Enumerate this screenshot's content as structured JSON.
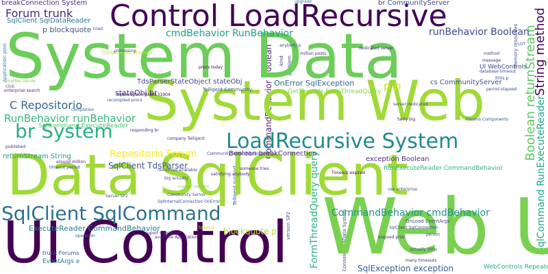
{
  "word_cloud": {
    "words": [
      {
        "text": "System Data",
        "color": "#6ccd5a"
      },
      {
        "text": "System Web",
        "color": "#a0da39"
      },
      {
        "text": "Data SqlClient",
        "color": "#a0da39"
      },
      {
        "text": "UI Control",
        "color": "#440154"
      },
      {
        "text": "Control LoadRecursive",
        "color": "#440154"
      },
      {
        "text": "Web UI",
        "color": "#7ad151"
      },
      {
        "text": "LoadRecursive System",
        "color": "#238a8d"
      },
      {
        "text": "SqlClient SqlCommand",
        "color": "#2c728e"
      },
      {
        "text": "br System",
        "color": "#2ab07f"
      },
      {
        "text": "Forum trunk",
        "color": "#482878"
      },
      {
        "text": "runBehavior Boolean",
        "color": "#3e4a89"
      },
      {
        "text": "cmdBehavior RunBehavior",
        "color": "#1f9e89"
      },
      {
        "text": "RunBehavior runBehavior",
        "color": "#35b779"
      },
      {
        "text": "Repositorio Forum",
        "color": "#fde725"
      },
      {
        "text": "C Repositorio",
        "color": "#31688e"
      },
      {
        "text": "CommandBehavior cmdBehavior",
        "color": "#21918c"
      },
      {
        "text": "ExecuteReader CommandBehavior",
        "color": "#26828e"
      },
      {
        "text": "SqlClient TdsParser",
        "color": "#3b528b"
      },
      {
        "text": "SqlException exception",
        "color": "#365c8d"
      },
      {
        "text": "String method",
        "color": "#440154"
      },
      {
        "text": "SqlCommand RunExecuteReader",
        "color": "#20a486"
      },
      {
        "text": "Boolean returnStream",
        "color": "#5ec962"
      },
      {
        "text": "breakConnection System",
        "color": "#46327e"
      },
      {
        "text": "br CommunityServer",
        "color": "#3f4788"
      },
      {
        "text": "blockquote p",
        "color": "#b5de2b"
      },
      {
        "text": "p p",
        "color": "#d8e219"
      },
      {
        "text": "SqlClient SqlDataReader",
        "color": "#2a788e"
      },
      {
        "text": "p blockquote",
        "color": "#3b528b"
      },
      {
        "text": "OnError SqlException",
        "color": "#31688e"
      },
      {
        "text": "stateObj br",
        "color": "#414487"
      },
      {
        "text": "TdsParserStateObject stateObj",
        "color": "#3e4989"
      },
      {
        "text": "SqlCommand ExecuteReader",
        "color": "#4ac16d"
      },
      {
        "text": "Boolean breakConnection",
        "color": "#482475"
      },
      {
        "text": "exception Boolean",
        "color": "#472d7b"
      },
      {
        "text": "RunExecuteReader CommandBehavior",
        "color": "#2fb47c"
      },
      {
        "text": "returnStream String",
        "color": "#1f988b"
      },
      {
        "text": "cs CommunityServer",
        "color": "#3b528b"
      },
      {
        "text": "GetThreads FormThreadQuery",
        "color": "#86d549"
      },
      {
        "text": "UI WebControls",
        "color": "#3e4a89"
      },
      {
        "text": "WebControls Repeater",
        "color": "#27ad81"
      },
      {
        "text": "CommandBehavior Boolean",
        "color": "#481b6d"
      },
      {
        "text": "FormThreadQuery query",
        "color": "#2db27d"
      },
      {
        "text": "EventArgs e",
        "color": "#2c728e"
      },
      {
        "text": "trunk Forums",
        "color": "#3e4a89"
      },
      {
        "text": "Components Threads",
        "color": "#c8e020"
      },
      {
        "text": "SqlException 0x80131904",
        "color": "#440154"
      },
      {
        "text": "Telligent Community",
        "color": "#3b528b"
      },
      {
        "text": "procs today",
        "color": "#440154"
      },
      {
        "text": "OnLoad EventArgs",
        "color": "#3e4989"
      },
      {
        "text": "dedicated server",
        "color": "#472c7a"
      },
      {
        "text": "memory resources",
        "color": "#3b528b"
      },
      {
        "text": "million posts",
        "color": "#482878"
      },
      {
        "text": "anybody p",
        "color": "#404688"
      },
      {
        "text": "upgrade",
        "color": "#2a788e"
      },
      {
        "text": "LOT",
        "color": "#3b528b"
      },
      {
        "text": "Timeout expired",
        "color": "#440154"
      },
      {
        "text": "actually 300s",
        "color": "#3e4989"
      },
      {
        "text": "many timeouts",
        "color": "#482878"
      },
      {
        "text": "elapsed prior",
        "color": "#472d7b"
      },
      {
        "text": "person",
        "color": "#3e4989"
      },
      {
        "text": "version SP2",
        "color": "#3b528b"
      },
      {
        "text": "around million",
        "color": "#482878"
      },
      {
        "text": "timeout period",
        "color": "#3e4a89"
      },
      {
        "text": "operation",
        "color": "#31688e"
      },
      {
        "text": "available Application",
        "color": "#482878"
      },
      {
        "text": "today p",
        "color": "#b5de2b"
      },
      {
        "text": "Community Server",
        "color": "#3b528b"
      },
      {
        "text": "processing",
        "color": "#3e4989"
      },
      {
        "text": "another server",
        "color": "#7ad151"
      },
      {
        "text": "click",
        "color": "#3b528b"
      },
      {
        "text": "enterprise search",
        "color": "#482878"
      },
      {
        "text": "completion",
        "color": "#31688e"
      },
      {
        "text": "published",
        "color": "#472d7b"
      },
      {
        "text": "Application pool",
        "color": "#26828e"
      },
      {
        "text": "database timeout",
        "color": "#3e4989"
      },
      {
        "text": "300s p",
        "color": "#3b528b"
      },
      {
        "text": "period elapsed",
        "color": "#3e4a89"
      },
      {
        "text": "fairly big",
        "color": "#482878"
      },
      {
        "text": "server dedicated",
        "color": "#3b528b"
      },
      {
        "text": "resources available",
        "color": "#414487"
      },
      {
        "text": "big actually",
        "color": "#3e4989"
      },
      {
        "text": "current version",
        "color": "#7ad151"
      },
      {
        "text": "someone tries",
        "color": "#482878"
      },
      {
        "text": "use enterprise",
        "color": "#3b528b"
      },
      {
        "text": "SqlClient SqlConnection",
        "color": "#3e4989"
      },
      {
        "text": "suport suggested",
        "color": "#482878"
      },
      {
        "text": "SqlInternalConnection OnError",
        "color": "#3b528b"
      },
      {
        "text": "Server SP2",
        "color": "#3e4989"
      },
      {
        "text": "responding br",
        "color": "#482878"
      },
      {
        "text": "recompiled procs",
        "color": "#3b528b"
      },
      {
        "text": "tried",
        "color": "#3e4989"
      },
      {
        "text": "kind",
        "color": "#472d7b"
      },
      {
        "text": "problem",
        "color": "#3e4a89"
      },
      {
        "text": "method",
        "color": "#3e4989"
      },
      {
        "text": "message",
        "color": "#482878"
      },
      {
        "text": "Telligent support",
        "color": "#3b528b"
      },
      {
        "text": "satisfying anybody",
        "color": "#482878"
      },
      {
        "text": "CommunityServer Discussions",
        "color": "#3e4989"
      },
      {
        "text": "Forums Components",
        "color": "#3b528b"
      },
      {
        "text": "company Telligent",
        "color": "#482878"
      },
      {
        "text": "ConsoleMetaData System",
        "color": "#3e4989"
      }
    ]
  }
}
